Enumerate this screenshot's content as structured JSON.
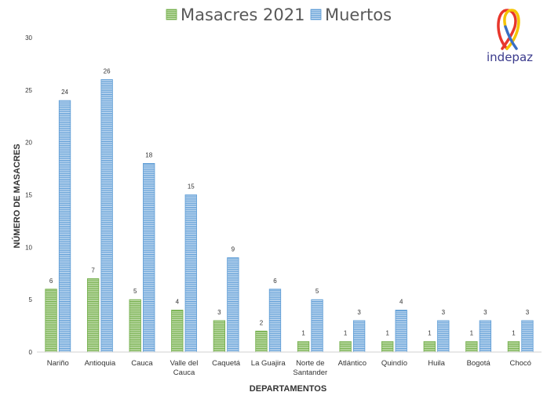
{
  "chart_data": {
    "type": "bar",
    "categories": [
      "Nariño",
      "Antioquia",
      "Cauca",
      "Valle del Cauca",
      "Caquetá",
      "La Guajira",
      "Norte de Santander",
      "Atlántico",
      "Quindío",
      "Huila",
      "Bogotá",
      "Chocó"
    ],
    "category_lines": [
      [
        "Nariño"
      ],
      [
        "Antioquia"
      ],
      [
        "Cauca"
      ],
      [
        "Valle del",
        "Cauca"
      ],
      [
        "Caquetá"
      ],
      [
        "La Guajira"
      ],
      [
        "Norte de",
        "Santander"
      ],
      [
        "Atlántico"
      ],
      [
        "Quindío"
      ],
      [
        "Huila"
      ],
      [
        "Bogotá"
      ],
      [
        "Chocó"
      ]
    ],
    "series": [
      {
        "name": "Masacres 2021",
        "values": [
          6,
          7,
          5,
          4,
          3,
          2,
          1,
          1,
          1,
          1,
          1,
          1
        ],
        "color": "#70ad47"
      },
      {
        "name": "Muertos",
        "values": [
          24,
          26,
          18,
          15,
          9,
          6,
          5,
          3,
          4,
          3,
          3,
          3
        ],
        "color": "#5b9bd5"
      }
    ],
    "xlabel": "DEPARTAMENTOS",
    "ylabel": "NÚMERO DE MASACRES",
    "ylim": [
      0,
      30
    ],
    "yticks": [
      0,
      5,
      10,
      15,
      20,
      25,
      30
    ],
    "grid": false,
    "legend_position": "top-center",
    "data_labels": true
  },
  "logo": {
    "text": "indepaz",
    "icon": "ribbon-icon",
    "colors": [
      "#f5c400",
      "#3a6fc4",
      "#e8372c"
    ]
  }
}
